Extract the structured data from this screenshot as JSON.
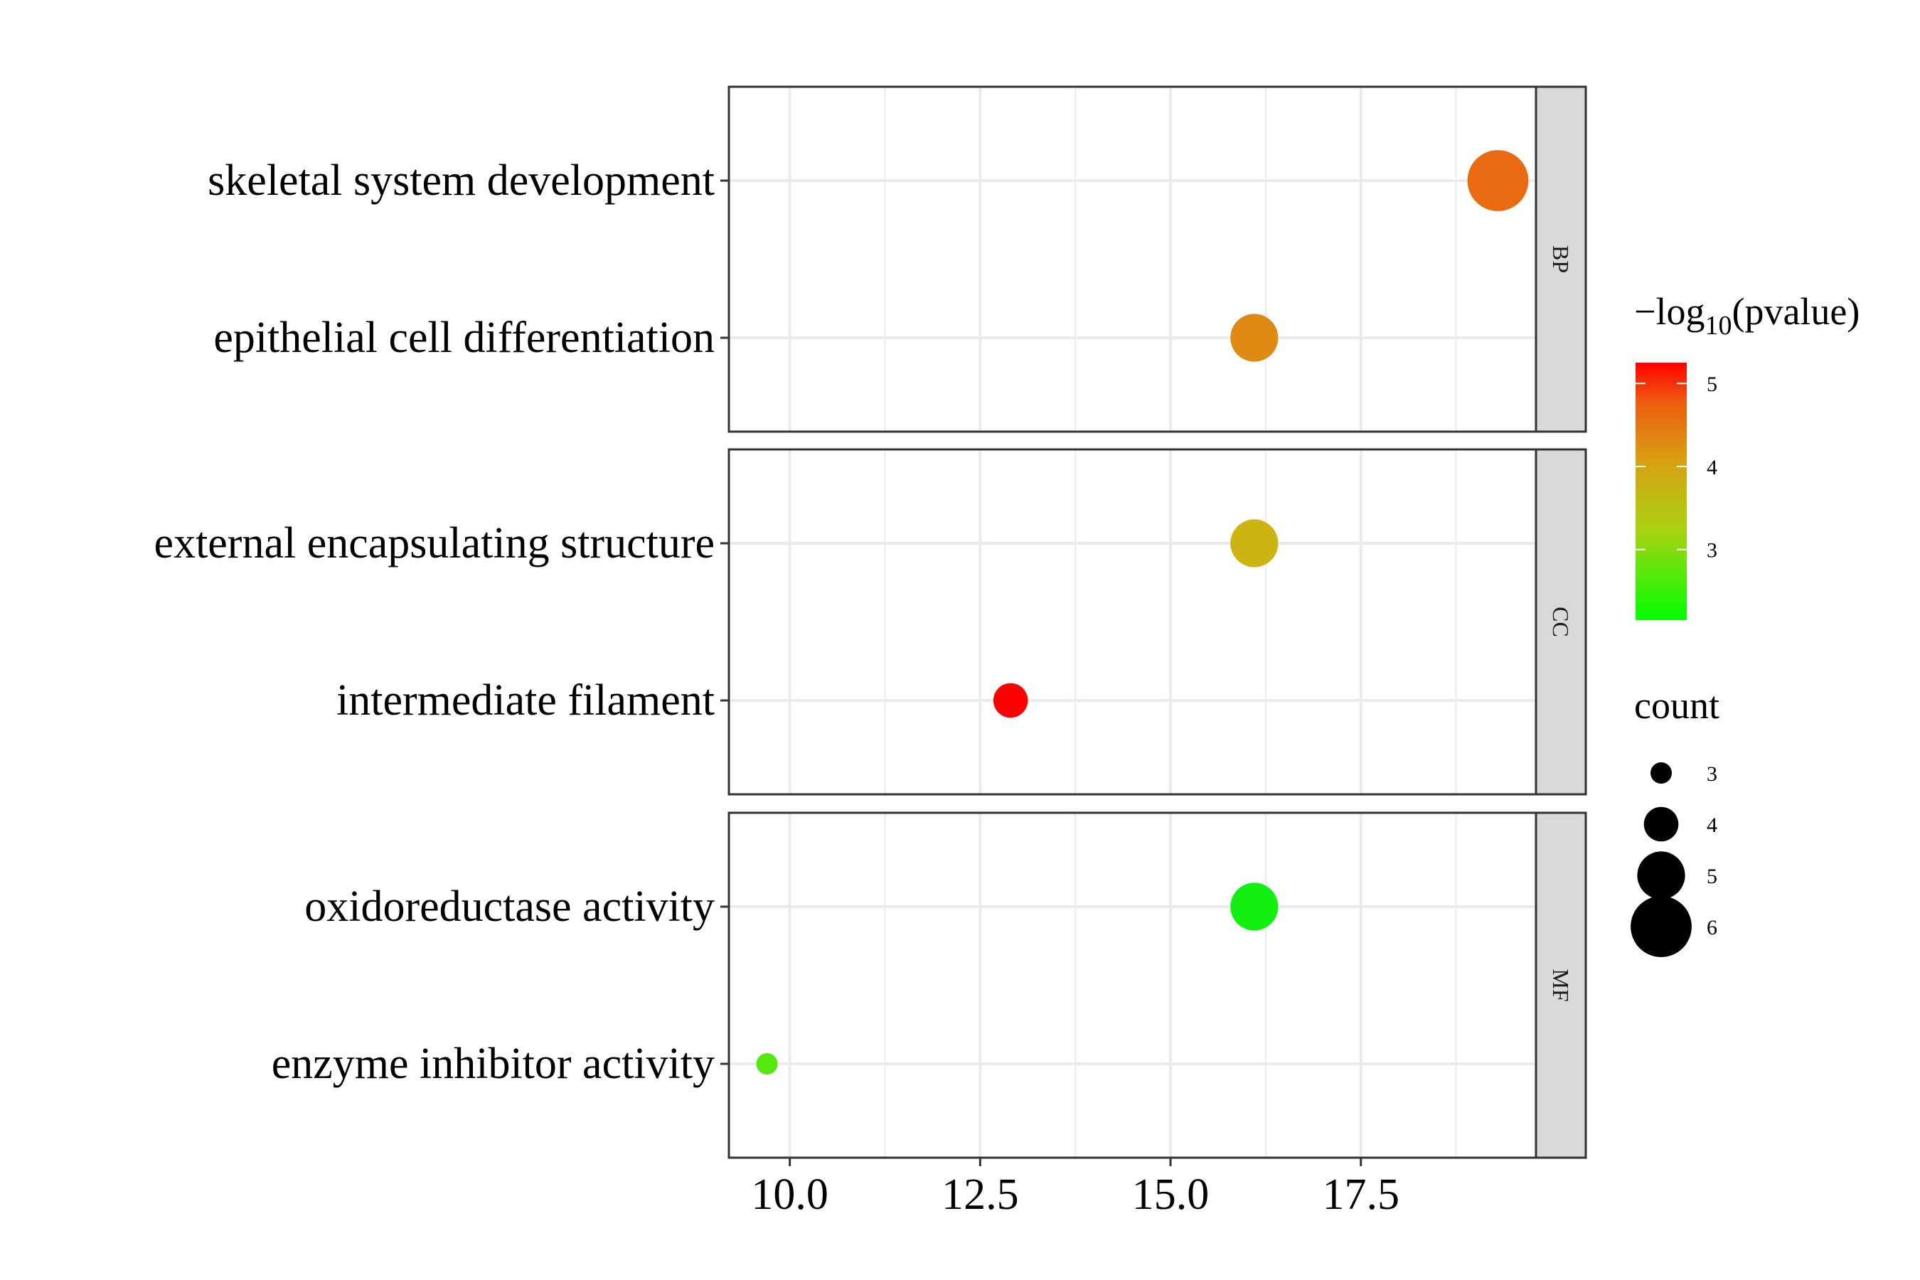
{
  "chart_data": {
    "type": "scatter",
    "x_ticks": [
      10.0,
      12.5,
      15.0,
      17.5
    ],
    "x_tick_labels": [
      "10.0",
      "12.5",
      "15.0",
      "17.5"
    ],
    "xlim": [
      9.2,
      19.8
    ],
    "xlabel": "",
    "ylabel": "",
    "grid": true,
    "facets": [
      {
        "label": "BP",
        "terms": [
          {
            "term": "skeletal system development",
            "x": 19.3,
            "count": 6,
            "neg_log10_pvalue": 4.5,
            "color": "#EB6B12"
          },
          {
            "term": "epithelial cell differentiation",
            "x": 16.1,
            "count": 5,
            "neg_log10_pvalue": 4.1,
            "color": "#DF8A12"
          }
        ]
      },
      {
        "label": "CC",
        "terms": [
          {
            "term": "external encapsulating structure",
            "x": 16.1,
            "count": 5,
            "neg_log10_pvalue": 3.7,
            "color": "#CDB411"
          },
          {
            "term": "intermediate filament",
            "x": 12.9,
            "count": 4,
            "neg_log10_pvalue": 5.2,
            "color": "#FF0000"
          }
        ]
      },
      {
        "label": "MF",
        "terms": [
          {
            "term": "oxidoreductase activity",
            "x": 16.1,
            "count": 5,
            "neg_log10_pvalue": 2.2,
            "color": "#11F011"
          },
          {
            "term": "enzyme inhibitor activity",
            "x": 9.7,
            "count": 3,
            "neg_log10_pvalue": 2.3,
            "color": "#55E80A"
          }
        ]
      }
    ],
    "color_legend": {
      "title_main": "−log",
      "title_sub": "10",
      "title_end": "(pvalue)",
      "range": [
        2.15,
        5.25
      ],
      "ticks": [
        3,
        4,
        5
      ],
      "low_color": "#00FF00",
      "high_color": "#FF0000"
    },
    "size_legend": {
      "title": "count",
      "values": [
        3,
        4,
        5,
        6
      ]
    },
    "legend_position": "right"
  }
}
